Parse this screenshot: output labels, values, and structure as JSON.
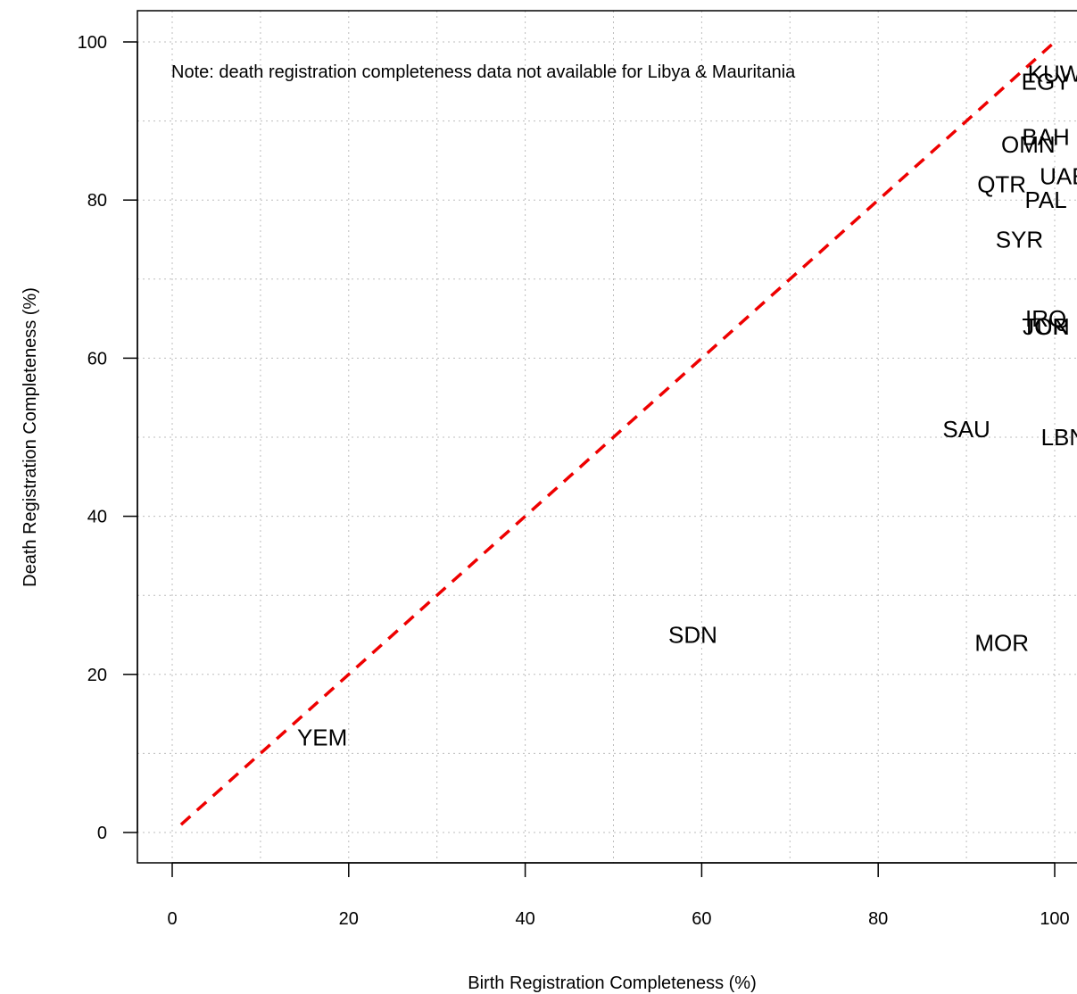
{
  "chart_data": {
    "type": "scatter",
    "title": "",
    "xlabel": "Birth Registration Completeness (%)",
    "ylabel": "Death Registration Completeness (%)",
    "xlim": [
      -4,
      104
    ],
    "ylim": [
      -4,
      104
    ],
    "x_ticks": [
      0,
      20,
      40,
      60,
      80,
      100
    ],
    "y_ticks": [
      0,
      20,
      40,
      60,
      80,
      100
    ],
    "grid": true,
    "grid_step": 10,
    "note": "Note: death registration completeness data not available for Libya & Mauritania",
    "reference_line": {
      "style": "dashed",
      "color": "#ee0000",
      "from": [
        1,
        1
      ],
      "to": [
        100,
        100
      ]
    },
    "points": [
      {
        "label": "KUW",
        "x": 100,
        "y": 96
      },
      {
        "label": "EGY",
        "x": 99,
        "y": 95
      },
      {
        "label": "BAH",
        "x": 99,
        "y": 88
      },
      {
        "label": "OMN",
        "x": 97,
        "y": 87
      },
      {
        "label": "UAE",
        "x": 101,
        "y": 83
      },
      {
        "label": "QTR",
        "x": 94,
        "y": 82
      },
      {
        "label": "PAL",
        "x": 99,
        "y": 80
      },
      {
        "label": "SYR",
        "x": 96,
        "y": 75
      },
      {
        "label": "IRQ",
        "x": 99,
        "y": 65
      },
      {
        "label": "TUN",
        "x": 99,
        "y": 64
      },
      {
        "label": "JOR",
        "x": 99,
        "y": 64
      },
      {
        "label": "SAU",
        "x": 90,
        "y": 51
      },
      {
        "label": "LBN",
        "x": 101,
        "y": 50
      },
      {
        "label": "SDN",
        "x": 59,
        "y": 25
      },
      {
        "label": "MOR",
        "x": 94,
        "y": 24
      },
      {
        "label": "YEM",
        "x": 17,
        "y": 12
      }
    ]
  }
}
